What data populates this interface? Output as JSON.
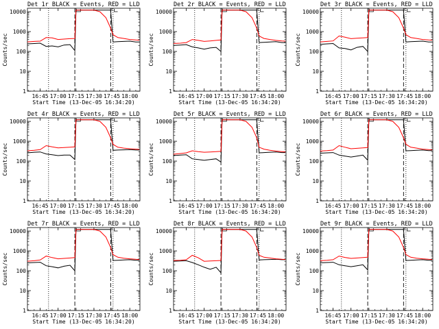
{
  "colors": {
    "events": "#000000",
    "lld": "#ff0000",
    "background": "#ffffff"
  },
  "chart_data": [
    {
      "type": "line",
      "title": "Det 1r BLACK = Events, RED = LLD",
      "xlabel": "Start Time (13-Dec-05 16:34:20)",
      "ylabel": "Counts/sec",
      "yscale": "log",
      "ylim": [
        1,
        10000
      ],
      "ytick_labels": [
        "1",
        "10",
        "100",
        "1000",
        "10000"
      ],
      "xtick_labels": [
        "16:45",
        "17:00",
        "17:15",
        "17:30",
        "17:45",
        "18:00"
      ],
      "x": [
        "16:34",
        "16:40",
        "16:45",
        "16:50",
        "16:55",
        "17:00",
        "17:05",
        "17:10",
        "17:14",
        "17:15",
        "17:16",
        "17:20",
        "17:25",
        "17:30",
        "17:35",
        "17:40",
        "17:44",
        "17:46",
        "17:50",
        "17:55",
        "18:00",
        "18:05",
        "18:08"
      ],
      "series": [
        {
          "name": "Events",
          "values": [
            240,
            250,
            260,
            180,
            190,
            170,
            210,
            220,
            110,
            12000,
            12000,
            12000,
            12000,
            12000,
            12000,
            12000,
            12000,
            300,
            310,
            320,
            330,
            300,
            300
          ]
        },
        {
          "name": "LLD",
          "values": [
            300,
            320,
            330,
            500,
            480,
            400,
            420,
            440,
            450,
            12000,
            12000,
            12000,
            12000,
            12000,
            10000,
            5000,
            1500,
            700,
            500,
            450,
            400,
            380,
            370
          ]
        }
      ]
    },
    {
      "type": "line",
      "title": "Det 2r BLACK = Events, RED = LLD",
      "xlabel": "Start Time (13-Dec-05 16:34:20)",
      "ylabel": "Counts/sec",
      "yscale": "log",
      "ylim": [
        1,
        10000
      ],
      "ytick_labels": [
        "1",
        "10",
        "100",
        "1000",
        "10000"
      ],
      "xtick_labels": [
        "16:45",
        "17:00",
        "17:15",
        "17:30",
        "17:45",
        "18:00"
      ],
      "x": [
        "16:34",
        "16:40",
        "16:45",
        "16:50",
        "16:55",
        "17:00",
        "17:05",
        "17:10",
        "17:14",
        "17:15",
        "17:16",
        "17:20",
        "17:25",
        "17:30",
        "17:35",
        "17:40",
        "17:44",
        "17:46",
        "17:50",
        "17:55",
        "18:00",
        "18:05",
        "18:08"
      ],
      "series": [
        {
          "name": "Events",
          "values": [
            200,
            210,
            220,
            170,
            150,
            130,
            150,
            160,
            100,
            12000,
            12000,
            12000,
            12000,
            12000,
            12000,
            12000,
            12000,
            280,
            290,
            300,
            310,
            280,
            280
          ]
        },
        {
          "name": "LLD",
          "values": [
            250,
            260,
            280,
            400,
            360,
            320,
            340,
            360,
            380,
            12000,
            12000,
            12000,
            12000,
            12000,
            10000,
            5000,
            1500,
            600,
            450,
            400,
            360,
            340,
            330
          ]
        }
      ]
    },
    {
      "type": "line",
      "title": "Det 3r BLACK = Events, RED = LLD",
      "xlabel": "Start Time (13-Dec-05 16:34:20)",
      "ylabel": "Counts/sec",
      "yscale": "log",
      "ylim": [
        1,
        10000
      ],
      "ytick_labels": [
        "1",
        "10",
        "100",
        "1000",
        "10000"
      ],
      "xtick_labels": [
        "16:45",
        "17:00",
        "17:15",
        "17:30",
        "17:45",
        "18:00"
      ],
      "x": [
        "16:34",
        "16:40",
        "16:45",
        "16:50",
        "16:55",
        "17:00",
        "17:05",
        "17:10",
        "17:14",
        "17:15",
        "17:16",
        "17:20",
        "17:25",
        "17:30",
        "17:35",
        "17:40",
        "17:44",
        "17:46",
        "17:50",
        "17:55",
        "18:00",
        "18:05",
        "18:08"
      ],
      "series": [
        {
          "name": "Events",
          "values": [
            230,
            240,
            250,
            150,
            140,
            120,
            160,
            180,
            100,
            12000,
            12000,
            12000,
            12000,
            12000,
            12000,
            12000,
            12000,
            300,
            310,
            320,
            330,
            300,
            300
          ]
        },
        {
          "name": "LLD",
          "values": [
            300,
            320,
            340,
            600,
            520,
            440,
            460,
            480,
            500,
            12000,
            12000,
            12000,
            12000,
            12000,
            10000,
            5000,
            1500,
            700,
            500,
            450,
            400,
            380,
            370
          ]
        }
      ]
    },
    {
      "type": "line",
      "title": "Det 4r BLACK = Events, RED = LLD",
      "xlabel": "Start Time (13-Dec-05 16:34:20)",
      "ylabel": "Counts/sec",
      "yscale": "log",
      "ylim": [
        1,
        10000
      ],
      "ytick_labels": [
        "1",
        "10",
        "100",
        "1000",
        "10000"
      ],
      "xtick_labels": [
        "16:45",
        "17:00",
        "17:15",
        "17:30",
        "17:45",
        "18:00"
      ],
      "x": [
        "16:34",
        "16:40",
        "16:45",
        "16:50",
        "16:55",
        "17:00",
        "17:05",
        "17:10",
        "17:14",
        "17:15",
        "17:16",
        "17:20",
        "17:25",
        "17:30",
        "17:35",
        "17:40",
        "17:44",
        "17:46",
        "17:50",
        "17:55",
        "18:00",
        "18:05",
        "18:08"
      ],
      "series": [
        {
          "name": "Events",
          "values": [
            260,
            280,
            290,
            230,
            210,
            190,
            200,
            200,
            120,
            12000,
            12000,
            12000,
            12000,
            12000,
            12000,
            12000,
            12000,
            350,
            360,
            370,
            380,
            360,
            360
          ]
        },
        {
          "name": "LLD",
          "values": [
            330,
            350,
            380,
            600,
            520,
            460,
            480,
            500,
            520,
            12000,
            12000,
            12000,
            12000,
            12000,
            10000,
            5000,
            1500,
            700,
            500,
            450,
            420,
            400,
            390
          ]
        }
      ]
    },
    {
      "type": "line",
      "title": "Det 5r BLACK = Events, RED = LLD",
      "xlabel": "Start Time (13-Dec-05 16:34:20)",
      "ylabel": "Counts/sec",
      "yscale": "log",
      "ylim": [
        1,
        10000
      ],
      "ytick_labels": [
        "1",
        "10",
        "100",
        "1000",
        "10000"
      ],
      "xtick_labels": [
        "16:45",
        "17:00",
        "17:15",
        "17:30",
        "17:45",
        "18:00"
      ],
      "x": [
        "16:34",
        "16:40",
        "16:45",
        "16:50",
        "16:55",
        "17:00",
        "17:05",
        "17:10",
        "17:14",
        "17:15",
        "17:16",
        "17:20",
        "17:25",
        "17:30",
        "17:35",
        "17:40",
        "17:44",
        "17:46",
        "17:50",
        "17:55",
        "18:00",
        "18:05",
        "18:08"
      ],
      "series": [
        {
          "name": "Events",
          "values": [
            190,
            200,
            210,
            130,
            120,
            110,
            120,
            130,
            90,
            12000,
            12000,
            12000,
            12000,
            12000,
            12000,
            12000,
            12000,
            260,
            270,
            280,
            290,
            270,
            270
          ]
        },
        {
          "name": "LLD",
          "values": [
            220,
            240,
            260,
            330,
            300,
            280,
            290,
            300,
            310,
            12000,
            12000,
            12000,
            12000,
            12000,
            10000,
            5000,
            1500,
            500,
            400,
            350,
            320,
            300,
            290
          ]
        }
      ]
    },
    {
      "type": "line",
      "title": "Det 6r BLACK = Events, RED = LLD",
      "xlabel": "Start Time (13-Dec-05 16:34:20)",
      "ylabel": "Counts/sec",
      "yscale": "log",
      "ylim": [
        1,
        10000
      ],
      "ytick_labels": [
        "1",
        "10",
        "100",
        "1000",
        "10000"
      ],
      "xtick_labels": [
        "16:45",
        "17:00",
        "17:15",
        "17:30",
        "17:45",
        "18:00"
      ],
      "x": [
        "16:34",
        "16:40",
        "16:45",
        "16:50",
        "16:55",
        "17:00",
        "17:05",
        "17:10",
        "17:14",
        "17:15",
        "17:16",
        "17:20",
        "17:25",
        "17:30",
        "17:35",
        "17:40",
        "17:44",
        "17:46",
        "17:50",
        "17:55",
        "18:00",
        "18:05",
        "18:08"
      ],
      "series": [
        {
          "name": "Events",
          "values": [
            250,
            260,
            270,
            200,
            180,
            160,
            180,
            200,
            110,
            12000,
            12000,
            12000,
            12000,
            12000,
            12000,
            12000,
            12000,
            330,
            340,
            350,
            360,
            340,
            340
          ]
        },
        {
          "name": "LLD",
          "values": [
            320,
            340,
            360,
            600,
            500,
            420,
            440,
            460,
            480,
            12000,
            12000,
            12000,
            12000,
            12000,
            10000,
            5000,
            1500,
            700,
            500,
            450,
            400,
            380,
            370
          ]
        }
      ]
    },
    {
      "type": "line",
      "title": "Det 7r BLACK = Events, RED = LLD",
      "xlabel": "Start Time (13-Dec-05 16:34:20)",
      "ylabel": "Counts/sec",
      "yscale": "log",
      "ylim": [
        1,
        10000
      ],
      "ytick_labels": [
        "1",
        "10",
        "100",
        "1000",
        "10000"
      ],
      "xtick_labels": [
        "16:45",
        "17:00",
        "17:15",
        "17:30",
        "17:45",
        "18:00"
      ],
      "x": [
        "16:34",
        "16:40",
        "16:45",
        "16:50",
        "16:55",
        "17:00",
        "17:05",
        "17:10",
        "17:14",
        "17:15",
        "17:16",
        "17:20",
        "17:25",
        "17:30",
        "17:35",
        "17:40",
        "17:44",
        "17:46",
        "17:50",
        "17:55",
        "18:00",
        "18:05",
        "18:08"
      ],
      "series": [
        {
          "name": "Events",
          "values": [
            250,
            260,
            270,
            180,
            160,
            140,
            170,
            190,
            100,
            12000,
            12000,
            12000,
            12000,
            12000,
            12000,
            12000,
            12000,
            330,
            340,
            350,
            360,
            340,
            340
          ]
        },
        {
          "name": "LLD",
          "values": [
            300,
            320,
            350,
            550,
            460,
            400,
            420,
            440,
            460,
            12000,
            12000,
            12000,
            12000,
            12000,
            10000,
            5000,
            1500,
            650,
            480,
            430,
            400,
            380,
            370
          ]
        }
      ]
    },
    {
      "type": "line",
      "title": "Det 8r BLACK = Events, RED = LLD",
      "xlabel": "Start Time (13-Dec-05 16:34:20)",
      "ylabel": "Counts/sec",
      "yscale": "log",
      "ylim": [
        1,
        10000
      ],
      "ytick_labels": [
        "1",
        "10",
        "100",
        "1000",
        "10000"
      ],
      "xtick_labels": [
        "16:45",
        "17:00",
        "17:15",
        "17:30",
        "17:45",
        "18:00"
      ],
      "x": [
        "16:34",
        "16:40",
        "16:45",
        "16:50",
        "16:55",
        "17:00",
        "17:05",
        "17:10",
        "17:14",
        "17:15",
        "17:16",
        "17:20",
        "17:25",
        "17:30",
        "17:35",
        "17:40",
        "17:44",
        "17:46",
        "17:50",
        "17:55",
        "18:00",
        "18:05",
        "18:08"
      ],
      "series": [
        {
          "name": "Events",
          "values": [
            300,
            310,
            320,
            260,
            200,
            150,
            120,
            150,
            80,
            12000,
            12000,
            12000,
            12000,
            12000,
            12000,
            12000,
            12000,
            350,
            360,
            370,
            380,
            360,
            360
          ]
        },
        {
          "name": "LLD",
          "values": [
            330,
            340,
            360,
            600,
            450,
            300,
            310,
            320,
            330,
            12000,
            12000,
            12000,
            12000,
            12000,
            10000,
            5000,
            1500,
            600,
            480,
            440,
            400,
            380,
            370
          ]
        }
      ]
    },
    {
      "type": "line",
      "title": "Det 9r BLACK = Events, RED = LLD",
      "xlabel": "Start Time (13-Dec-05 16:34:20)",
      "ylabel": "Counts/sec",
      "yscale": "log",
      "ylim": [
        1,
        10000
      ],
      "ytick_labels": [
        "1",
        "10",
        "100",
        "1000",
        "10000"
      ],
      "xtick_labels": [
        "16:45",
        "17:00",
        "17:15",
        "17:30",
        "17:45",
        "18:00"
      ],
      "x": [
        "16:34",
        "16:40",
        "16:45",
        "16:50",
        "16:55",
        "17:00",
        "17:05",
        "17:10",
        "17:14",
        "17:15",
        "17:16",
        "17:20",
        "17:25",
        "17:30",
        "17:35",
        "17:40",
        "17:44",
        "17:46",
        "17:50",
        "17:55",
        "18:00",
        "18:05",
        "18:08"
      ],
      "series": [
        {
          "name": "Events",
          "values": [
            250,
            260,
            270,
            200,
            180,
            160,
            180,
            200,
            110,
            12000,
            12000,
            12000,
            12000,
            12000,
            12000,
            12000,
            12000,
            330,
            340,
            350,
            360,
            340,
            340
          ]
        },
        {
          "name": "LLD",
          "values": [
            320,
            340,
            360,
            550,
            470,
            420,
            440,
            460,
            480,
            12000,
            12000,
            12000,
            12000,
            12000,
            10000,
            5000,
            1500,
            650,
            480,
            430,
            400,
            380,
            370
          ]
        }
      ]
    }
  ]
}
